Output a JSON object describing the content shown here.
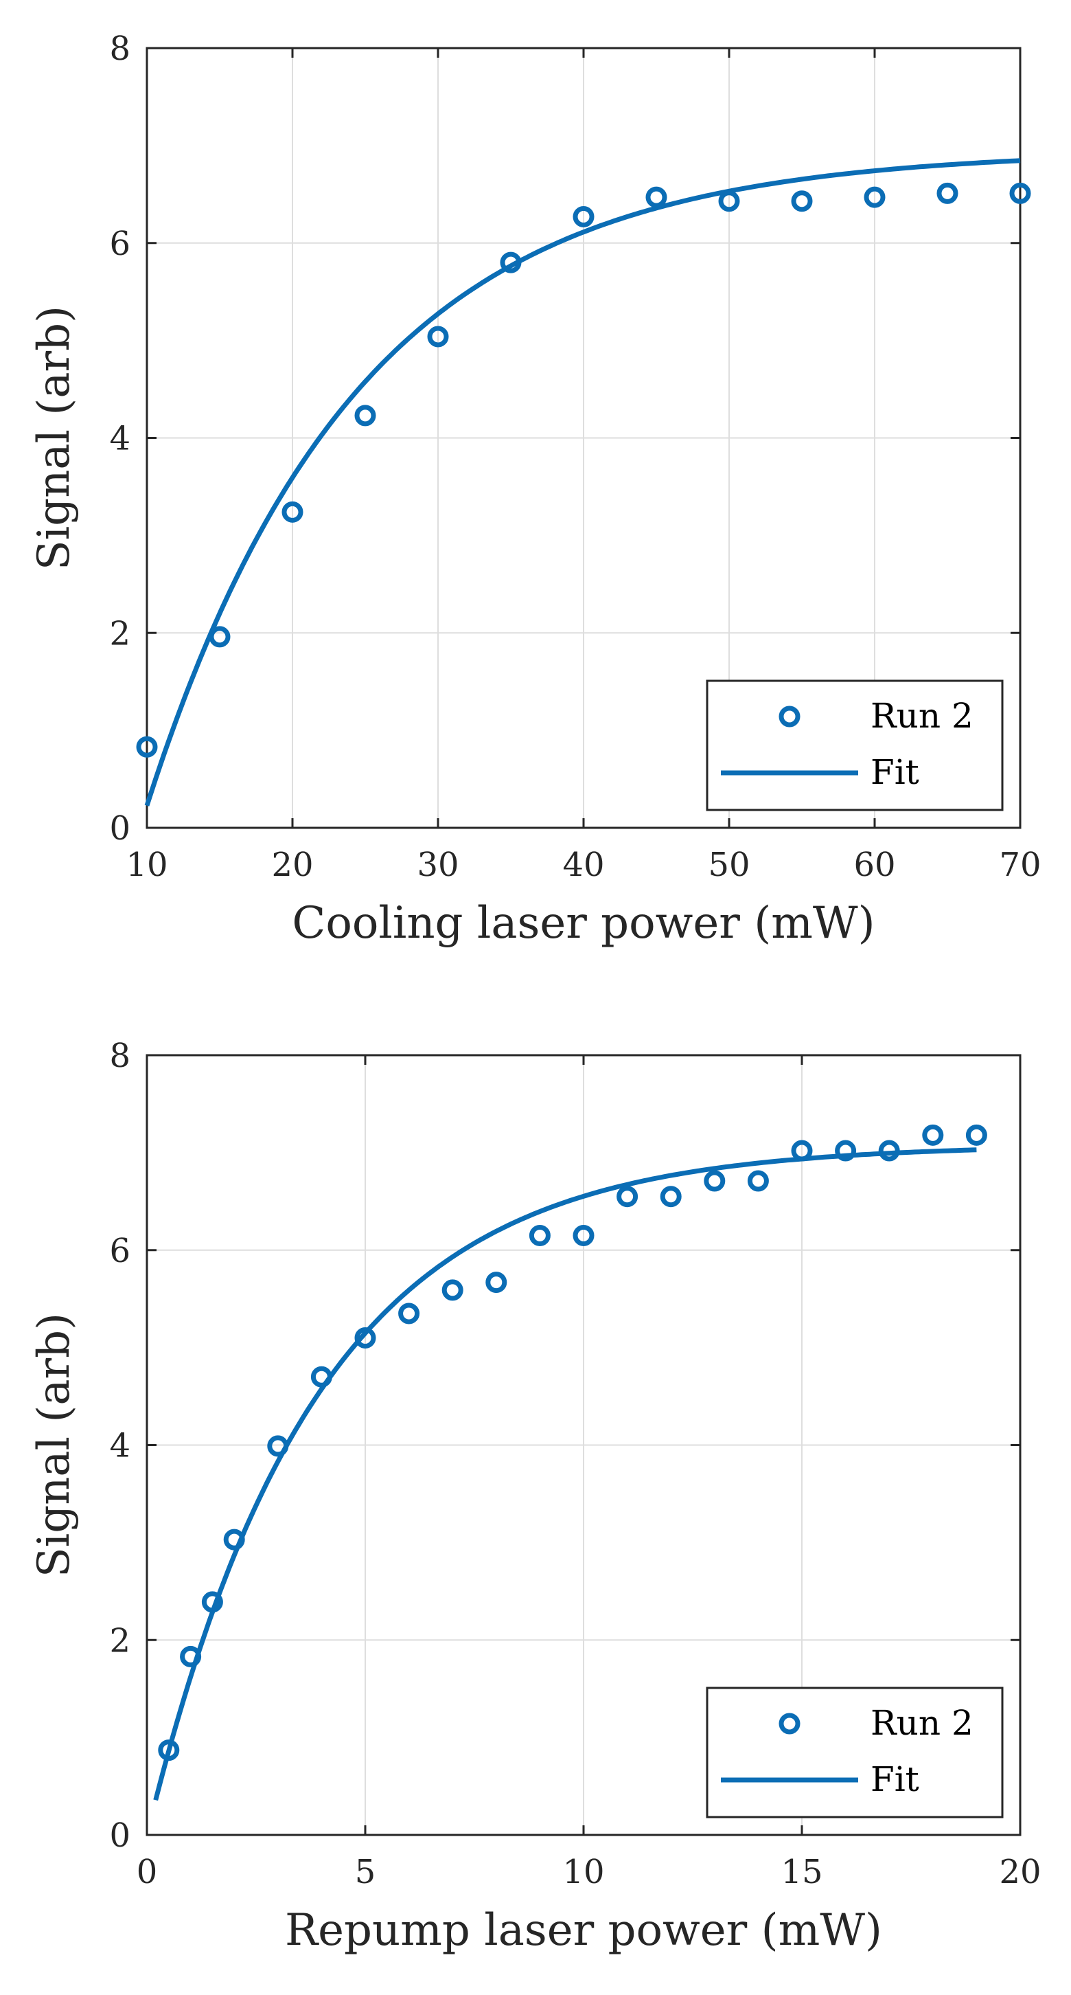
{
  "colors": {
    "series": "#0b6db5",
    "axis": "#262626",
    "grid": "#dedede"
  },
  "chart_data": [
    {
      "type": "scatter",
      "xlabel": "Cooling laser power (mW)",
      "ylabel": "Signal (arb)",
      "xlim": [
        10,
        70
      ],
      "ylim": [
        0,
        8
      ],
      "xticks": [
        10,
        20,
        30,
        40,
        50,
        60,
        70
      ],
      "yticks": [
        0,
        2,
        4,
        6,
        8
      ],
      "grid": true,
      "legend_position": "bottom-right",
      "series": [
        {
          "name": "Run 2",
          "kind": "markers",
          "x": [
            10,
            15,
            20,
            25,
            30,
            35,
            40,
            45,
            50,
            55,
            60,
            65,
            70
          ],
          "y": [
            0.83,
            1.96,
            3.24,
            4.23,
            5.04,
            5.8,
            6.27,
            6.47,
            6.43,
            6.43,
            6.47,
            6.51,
            6.51
          ]
        },
        {
          "name": "Fit",
          "kind": "line",
          "model": {
            "a": 6.95,
            "x0": 9.52,
            "tau": 14.4
          }
        }
      ]
    },
    {
      "type": "scatter",
      "xlabel": "Repump laser power (mW)",
      "ylabel": "Signal (arb)",
      "xlim": [
        0,
        20
      ],
      "ylim": [
        0,
        8
      ],
      "xticks": [
        0,
        5,
        10,
        15,
        20
      ],
      "yticks": [
        0,
        2,
        4,
        6,
        8
      ],
      "grid": true,
      "legend_position": "bottom-right",
      "series": [
        {
          "name": "Run 2",
          "kind": "markers",
          "x": [
            0.5,
            1,
            1.5,
            2,
            3,
            4,
            5,
            6,
            7,
            8,
            9,
            10,
            11,
            12,
            13,
            14,
            15,
            16,
            17,
            18,
            19
          ],
          "y": [
            0.87,
            1.83,
            2.39,
            3.03,
            3.99,
            4.7,
            5.1,
            5.35,
            5.59,
            5.67,
            6.15,
            6.15,
            6.55,
            6.55,
            6.71,
            6.71,
            7.02,
            7.02,
            7.02,
            7.18,
            7.18
          ]
        },
        {
          "name": "Fit",
          "kind": "line",
          "model": {
            "a": 7.08,
            "x0": 0.0,
            "tau": 3.85,
            "xmin": 0.2,
            "xmax": 19
          }
        }
      ]
    }
  ]
}
